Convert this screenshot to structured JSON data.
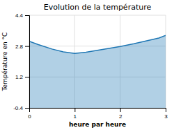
{
  "chart_data": {
    "type": "area",
    "title": "Evolution de la température",
    "xlabel": "heure par heure",
    "ylabel": "Température en °C",
    "x": [
      0,
      0.2,
      0.5,
      0.75,
      1.0,
      1.25,
      1.5,
      1.75,
      2.0,
      2.3,
      2.6,
      2.85,
      3.0
    ],
    "values": [
      3.05,
      2.88,
      2.65,
      2.5,
      2.42,
      2.48,
      2.58,
      2.68,
      2.78,
      2.92,
      3.08,
      3.22,
      3.35
    ],
    "xlim": [
      0,
      3
    ],
    "ylim": [
      -0.4,
      4.4
    ],
    "xticks": [
      0,
      1,
      2,
      3
    ],
    "yticks": [
      -0.4,
      1.2,
      2.8,
      4.4
    ],
    "grid": true
  }
}
